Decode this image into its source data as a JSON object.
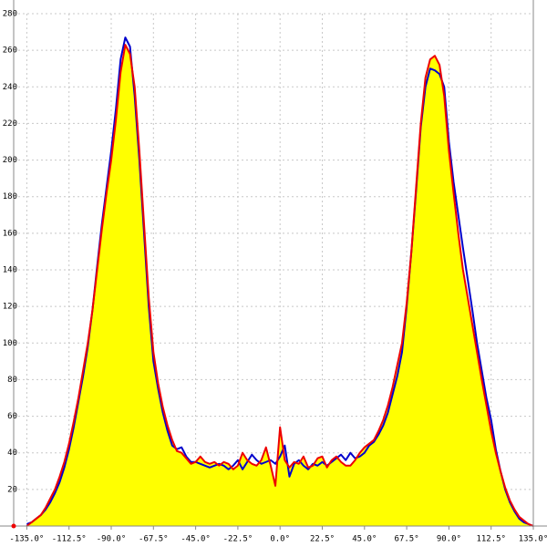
{
  "chart_data": {
    "type": "line",
    "x": [
      -135,
      -132.5,
      -130,
      -127.5,
      -125,
      -122.5,
      -120,
      -117.5,
      -115,
      -112.5,
      -110,
      -107.5,
      -105,
      -102.5,
      -100,
      -97.5,
      -95,
      -92.5,
      -90,
      -87.5,
      -85,
      -82.5,
      -80,
      -77.5,
      -75,
      -72.5,
      -70,
      -67.5,
      -65,
      -62.5,
      -60,
      -57.5,
      -55,
      -52.5,
      -50,
      -47.5,
      -45,
      -42.5,
      -40,
      -37.5,
      -35,
      -32.5,
      -30,
      -27.5,
      -25,
      -22.5,
      -20,
      -17.5,
      -15,
      -12.5,
      -10,
      -7.5,
      -5,
      -2.5,
      0,
      2.5,
      5,
      7.5,
      10,
      12.5,
      15,
      17.5,
      20,
      22.5,
      25,
      27.5,
      30,
      32.5,
      35,
      37.5,
      40,
      42.5,
      45,
      47.5,
      50,
      52.5,
      55,
      57.5,
      60,
      62.5,
      65,
      67.5,
      70,
      72.5,
      75,
      77.5,
      80,
      82.5,
      85,
      87.5,
      90,
      92.5,
      95,
      97.5,
      100,
      102.5,
      105,
      107.5,
      110,
      112.5,
      115,
      117.5,
      120,
      122.5,
      125,
      127.5,
      130,
      132.5,
      135
    ],
    "series": [
      {
        "color": "#0000cc",
        "values": [
          1,
          2,
          4,
          6,
          9,
          13,
          18,
          24,
          32,
          42,
          54,
          68,
          82,
          98,
          118,
          142,
          165,
          185,
          205,
          228,
          255,
          267,
          262,
          235,
          200,
          160,
          120,
          90,
          75,
          62,
          52,
          44,
          42,
          43,
          38,
          35,
          35,
          34,
          33,
          32,
          33,
          34,
          33,
          31,
          33,
          36,
          31,
          35,
          39,
          36,
          34,
          35,
          36,
          34,
          38,
          44,
          27,
          34,
          36,
          33,
          31,
          34,
          33,
          35,
          33,
          35,
          37,
          39,
          36,
          40,
          37,
          38,
          40,
          44,
          46,
          50,
          55,
          62,
          72,
          82,
          95,
          120,
          150,
          183,
          218,
          240,
          250,
          249,
          247,
          240,
          210,
          188,
          170,
          152,
          135,
          118,
          100,
          85,
          70,
          58,
          42,
          30,
          20,
          13,
          8,
          4,
          2,
          1,
          0
        ]
      },
      {
        "color": "#ee0000",
        "values": [
          0,
          2,
          4,
          6,
          10,
          15,
          20,
          27,
          35,
          45,
          57,
          70,
          85,
          100,
          118,
          140,
          162,
          182,
          200,
          222,
          248,
          263,
          258,
          240,
          205,
          165,
          125,
          95,
          78,
          65,
          55,
          47,
          41,
          40,
          37,
          34,
          35,
          38,
          35,
          34,
          35,
          33,
          35,
          34,
          31,
          33,
          40,
          36,
          34,
          33,
          36,
          43,
          33,
          22,
          54,
          36,
          32,
          35,
          34,
          38,
          32,
          33,
          37,
          38,
          32,
          36,
          38,
          35,
          33,
          33,
          36,
          40,
          43,
          45,
          47,
          52,
          58,
          66,
          76,
          88,
          100,
          122,
          150,
          185,
          220,
          245,
          255,
          257,
          252,
          235,
          205,
          182,
          160,
          140,
          125,
          110,
          95,
          80,
          66,
          52,
          40,
          30,
          21,
          14,
          9,
          5,
          3,
          1,
          0
        ]
      }
    ],
    "area_color": "#ffff00",
    "xlim": [
      -142,
      135
    ],
    "xticks": [
      {
        "value": -135,
        "label": "-135.0°"
      },
      {
        "value": -112.5,
        "label": "-112.5°"
      },
      {
        "value": -90,
        "label": "-90.0°"
      },
      {
        "value": -67.5,
        "label": "-67.5°"
      },
      {
        "value": -45,
        "label": "-45.0°"
      },
      {
        "value": -22.5,
        "label": "-22.5°"
      },
      {
        "value": 0,
        "label": "0.0°"
      },
      {
        "value": 22.5,
        "label": "22.5°"
      },
      {
        "value": 45,
        "label": "45.0°"
      },
      {
        "value": 67.5,
        "label": "67.5°"
      },
      {
        "value": 90,
        "label": "90.0°"
      },
      {
        "value": 112.5,
        "label": "112.5°"
      },
      {
        "value": 135,
        "label": "135.0°"
      }
    ],
    "ylim": [
      0,
      280
    ],
    "yticks": [
      20,
      40,
      60,
      80,
      100,
      120,
      140,
      160,
      180,
      200,
      220,
      240,
      260,
      280
    ],
    "grid": true
  }
}
